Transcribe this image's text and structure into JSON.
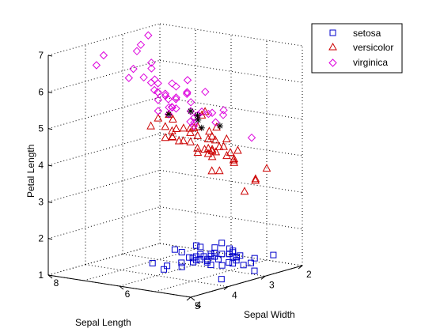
{
  "chart_data": {
    "type": "scatter",
    "title": "",
    "xlabel": "Sepal Length",
    "ylabel": "Sepal Width",
    "zlabel": "Petal Length",
    "xlim": [
      4,
      8
    ],
    "ylim": [
      2,
      5
    ],
    "zlim": [
      1,
      7
    ],
    "x_ticks": [
      "4",
      "6",
      "8"
    ],
    "y_ticks": [
      "2",
      "3",
      "4",
      "5"
    ],
    "z_ticks": [
      "1",
      "2",
      "3",
      "4",
      "5",
      "6",
      "7"
    ],
    "grid": true,
    "legend_position": "top-right",
    "series": [
      {
        "name": "setosa",
        "marker": "square",
        "color": "#0000cc",
        "points": [
          [
            5.1,
            3.5,
            1.4
          ],
          [
            4.9,
            3.0,
            1.4
          ],
          [
            4.7,
            3.2,
            1.3
          ],
          [
            4.6,
            3.1,
            1.5
          ],
          [
            5.0,
            3.6,
            1.4
          ],
          [
            5.4,
            3.9,
            1.7
          ],
          [
            4.6,
            3.4,
            1.4
          ],
          [
            5.0,
            3.4,
            1.5
          ],
          [
            4.4,
            2.9,
            1.4
          ],
          [
            4.9,
            3.1,
            1.5
          ],
          [
            5.4,
            3.7,
            1.5
          ],
          [
            4.8,
            3.4,
            1.6
          ],
          [
            4.8,
            3.0,
            1.4
          ],
          [
            4.3,
            3.0,
            1.1
          ],
          [
            5.8,
            4.0,
            1.2
          ],
          [
            5.7,
            4.4,
            1.5
          ],
          [
            5.4,
            3.9,
            1.3
          ],
          [
            5.1,
            3.5,
            1.4
          ],
          [
            5.7,
            3.8,
            1.7
          ],
          [
            5.1,
            3.8,
            1.5
          ],
          [
            5.4,
            3.4,
            1.7
          ],
          [
            5.1,
            3.7,
            1.5
          ],
          [
            4.6,
            3.6,
            1.0
          ],
          [
            5.1,
            3.3,
            1.7
          ],
          [
            4.8,
            3.4,
            1.9
          ],
          [
            5.0,
            3.0,
            1.6
          ],
          [
            5.0,
            3.4,
            1.6
          ],
          [
            5.2,
            3.5,
            1.5
          ],
          [
            5.2,
            3.4,
            1.4
          ],
          [
            4.7,
            3.2,
            1.6
          ],
          [
            4.8,
            3.1,
            1.6
          ],
          [
            5.4,
            3.4,
            1.5
          ],
          [
            5.2,
            4.1,
            1.5
          ],
          [
            5.5,
            4.2,
            1.4
          ],
          [
            4.9,
            3.1,
            1.5
          ],
          [
            5.0,
            3.2,
            1.2
          ],
          [
            5.5,
            3.5,
            1.3
          ],
          [
            4.4,
            3.0,
            1.3
          ],
          [
            5.1,
            3.4,
            1.5
          ],
          [
            5.0,
            3.5,
            1.3
          ],
          [
            4.5,
            2.3,
            1.3
          ],
          [
            4.4,
            3.2,
            1.3
          ],
          [
            5.0,
            3.5,
            1.6
          ],
          [
            5.1,
            3.8,
            1.9
          ],
          [
            4.8,
            3.0,
            1.4
          ],
          [
            5.1,
            3.8,
            1.6
          ],
          [
            4.6,
            3.2,
            1.4
          ],
          [
            5.3,
            3.7,
            1.5
          ],
          [
            5.0,
            3.3,
            1.4
          ]
        ]
      },
      {
        "name": "versicolor",
        "marker": "triangle",
        "color": "#cc0000",
        "points": [
          [
            7.0,
            3.2,
            4.7
          ],
          [
            6.4,
            3.2,
            4.5
          ],
          [
            6.9,
            3.1,
            4.9
          ],
          [
            5.5,
            2.3,
            4.0
          ],
          [
            6.5,
            2.8,
            4.6
          ],
          [
            5.7,
            2.8,
            4.5
          ],
          [
            6.3,
            3.3,
            4.7
          ],
          [
            4.9,
            2.4,
            3.3
          ],
          [
            6.6,
            2.9,
            4.6
          ],
          [
            5.2,
            2.7,
            3.9
          ],
          [
            5.0,
            2.0,
            3.5
          ],
          [
            5.9,
            3.0,
            4.2
          ],
          [
            6.0,
            2.2,
            4.0
          ],
          [
            6.1,
            2.9,
            4.7
          ],
          [
            5.6,
            2.9,
            3.6
          ],
          [
            6.7,
            3.1,
            4.4
          ],
          [
            5.6,
            3.0,
            4.5
          ],
          [
            5.8,
            2.7,
            4.1
          ],
          [
            6.2,
            2.2,
            4.5
          ],
          [
            5.6,
            2.5,
            3.9
          ],
          [
            5.9,
            3.2,
            4.8
          ],
          [
            6.1,
            2.8,
            4.0
          ],
          [
            6.3,
            2.5,
            4.9
          ],
          [
            6.1,
            2.8,
            4.7
          ],
          [
            6.4,
            2.9,
            4.3
          ],
          [
            6.6,
            3.0,
            4.4
          ],
          [
            6.8,
            2.8,
            4.8
          ],
          [
            6.7,
            3.0,
            5.0
          ],
          [
            6.0,
            2.9,
            4.5
          ],
          [
            5.7,
            2.6,
            3.5
          ],
          [
            5.5,
            2.4,
            3.8
          ],
          [
            5.5,
            2.4,
            3.7
          ],
          [
            5.8,
            2.7,
            3.9
          ],
          [
            6.0,
            2.7,
            5.1
          ],
          [
            5.4,
            3.0,
            4.5
          ],
          [
            6.0,
            3.4,
            4.5
          ],
          [
            6.7,
            3.1,
            4.7
          ],
          [
            6.3,
            2.3,
            4.4
          ],
          [
            5.6,
            3.0,
            4.1
          ],
          [
            5.5,
            2.5,
            4.0
          ],
          [
            5.5,
            2.6,
            4.4
          ],
          [
            6.1,
            3.0,
            4.6
          ],
          [
            5.8,
            2.6,
            4.0
          ],
          [
            5.0,
            2.3,
            3.3
          ],
          [
            5.6,
            2.7,
            4.2
          ],
          [
            5.7,
            3.0,
            4.2
          ],
          [
            5.7,
            2.9,
            4.2
          ],
          [
            6.2,
            2.9,
            4.3
          ],
          [
            5.1,
            2.5,
            3.0
          ],
          [
            5.7,
            2.8,
            4.1
          ]
        ]
      },
      {
        "name": "virginica",
        "marker": "diamond",
        "color": "#dd00dd",
        "points": [
          [
            6.3,
            3.3,
            6.0
          ],
          [
            5.8,
            2.7,
            5.1
          ],
          [
            7.1,
            3.0,
            5.9
          ],
          [
            6.3,
            2.9,
            5.6
          ],
          [
            6.5,
            3.0,
            5.8
          ],
          [
            7.6,
            3.0,
            6.6
          ],
          [
            4.9,
            2.5,
            4.5
          ],
          [
            7.3,
            2.9,
            6.3
          ],
          [
            6.7,
            2.5,
            5.8
          ],
          [
            7.2,
            3.6,
            6.1
          ],
          [
            6.5,
            3.2,
            5.1
          ],
          [
            6.4,
            2.7,
            5.3
          ],
          [
            6.8,
            3.0,
            5.5
          ],
          [
            5.7,
            2.5,
            5.0
          ],
          [
            5.8,
            2.8,
            5.1
          ],
          [
            6.4,
            3.2,
            5.3
          ],
          [
            6.5,
            3.0,
            5.5
          ],
          [
            7.7,
            3.8,
            6.7
          ],
          [
            7.7,
            2.6,
            6.9
          ],
          [
            6.0,
            2.2,
            5.0
          ],
          [
            6.9,
            3.2,
            5.7
          ],
          [
            5.6,
            2.8,
            4.9
          ],
          [
            7.7,
            2.8,
            6.7
          ],
          [
            6.3,
            2.7,
            4.9
          ],
          [
            6.7,
            3.3,
            5.7
          ],
          [
            7.2,
            3.2,
            6.0
          ],
          [
            6.2,
            2.8,
            4.8
          ],
          [
            6.1,
            3.0,
            4.9
          ],
          [
            6.4,
            2.8,
            5.6
          ],
          [
            7.2,
            3.0,
            5.8
          ],
          [
            7.4,
            2.8,
            6.1
          ],
          [
            7.9,
            3.8,
            6.4
          ],
          [
            6.4,
            2.8,
            5.6
          ],
          [
            6.3,
            2.8,
            5.1
          ],
          [
            6.1,
            2.6,
            5.6
          ],
          [
            7.7,
            3.0,
            6.1
          ],
          [
            6.3,
            3.4,
            5.6
          ],
          [
            6.4,
            3.1,
            5.5
          ],
          [
            6.0,
            3.0,
            4.8
          ],
          [
            6.9,
            3.1,
            5.4
          ],
          [
            6.7,
            3.1,
            5.6
          ],
          [
            6.9,
            3.1,
            5.1
          ],
          [
            6.8,
            3.2,
            5.9
          ],
          [
            6.7,
            3.3,
            5.7
          ],
          [
            6.7,
            3.0,
            5.2
          ],
          [
            6.3,
            2.5,
            5.0
          ],
          [
            6.5,
            3.0,
            5.2
          ],
          [
            6.2,
            3.4,
            5.4
          ],
          [
            5.9,
            3.0,
            5.1
          ]
        ]
      },
      {
        "name": "",
        "marker": "star",
        "color": "#000000",
        "points": [
          [
            5.9,
            3.0,
            5.1
          ],
          [
            6.3,
            2.8,
            5.1
          ],
          [
            6.5,
            3.2,
            5.1
          ],
          [
            6.2,
            2.6,
            4.6
          ],
          [
            6.0,
            2.3,
            4.6
          ],
          [
            6.3,
            2.6,
            4.8
          ]
        ]
      }
    ]
  }
}
